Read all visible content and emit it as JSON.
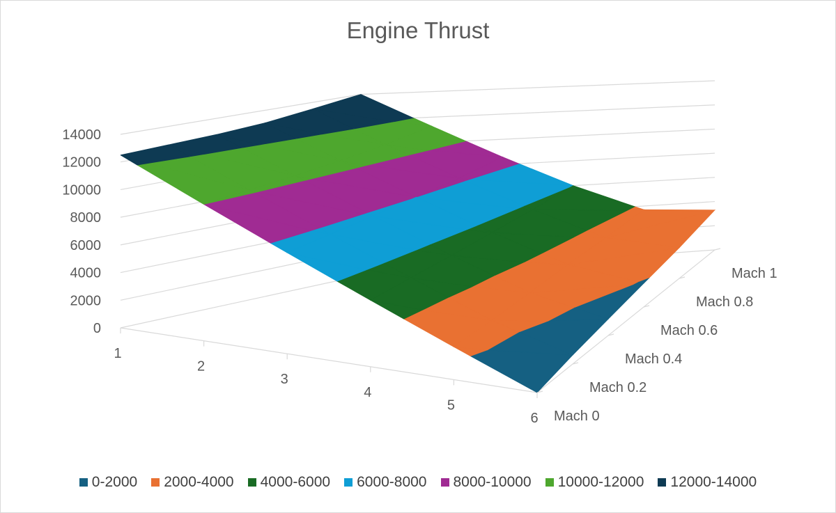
{
  "chart_data": {
    "type": "surface",
    "title": "Engine Thrust",
    "x_categories": [
      "1",
      "2",
      "3",
      "4",
      "5",
      "6"
    ],
    "depth_categories": [
      "Mach 0",
      "Mach 0.2",
      "Mach 0.4",
      "Mach 0.6",
      "Mach 0.8",
      "Mach 1"
    ],
    "z_ticks": [
      "0",
      "2000",
      "4000",
      "6000",
      "8000",
      "10000",
      "12000",
      "14000"
    ],
    "zlim": [
      0,
      14000
    ],
    "series": [
      {
        "name": "Mach 0",
        "values": [
          12500,
          10000,
          7500,
          5000,
          2500,
          0
        ]
      },
      {
        "name": "Mach 0.2",
        "values": [
          12650,
          10150,
          7650,
          5150,
          2650,
          700
        ]
      },
      {
        "name": "Mach 0.4",
        "values": [
          12800,
          10300,
          7800,
          5300,
          2900,
          1300
        ]
      },
      {
        "name": "Mach 0.6",
        "values": [
          13050,
          10500,
          8000,
          5500,
          3200,
          1900
        ]
      },
      {
        "name": "Mach 0.8",
        "values": [
          13500,
          10800,
          8200,
          5700,
          3400,
          2500
        ]
      },
      {
        "name": "Mach 1",
        "values": [
          14000,
          11300,
          8600,
          6000,
          3700,
          3300
        ]
      }
    ],
    "bands": [
      {
        "label": "0-2000",
        "color": "#156082"
      },
      {
        "label": "2000-4000",
        "color": "#E97132"
      },
      {
        "label": "4000-6000",
        "color": "#196B24"
      },
      {
        "label": "6000-8000",
        "color": "#0F9ED5"
      },
      {
        "label": "8000-10000",
        "color": "#A02B93"
      },
      {
        "label": "10000-12000",
        "color": "#4EA72E"
      },
      {
        "label": "12000-14000",
        "color": "#0E3A53"
      }
    ],
    "legend_position": "bottom",
    "gridlines": true
  }
}
